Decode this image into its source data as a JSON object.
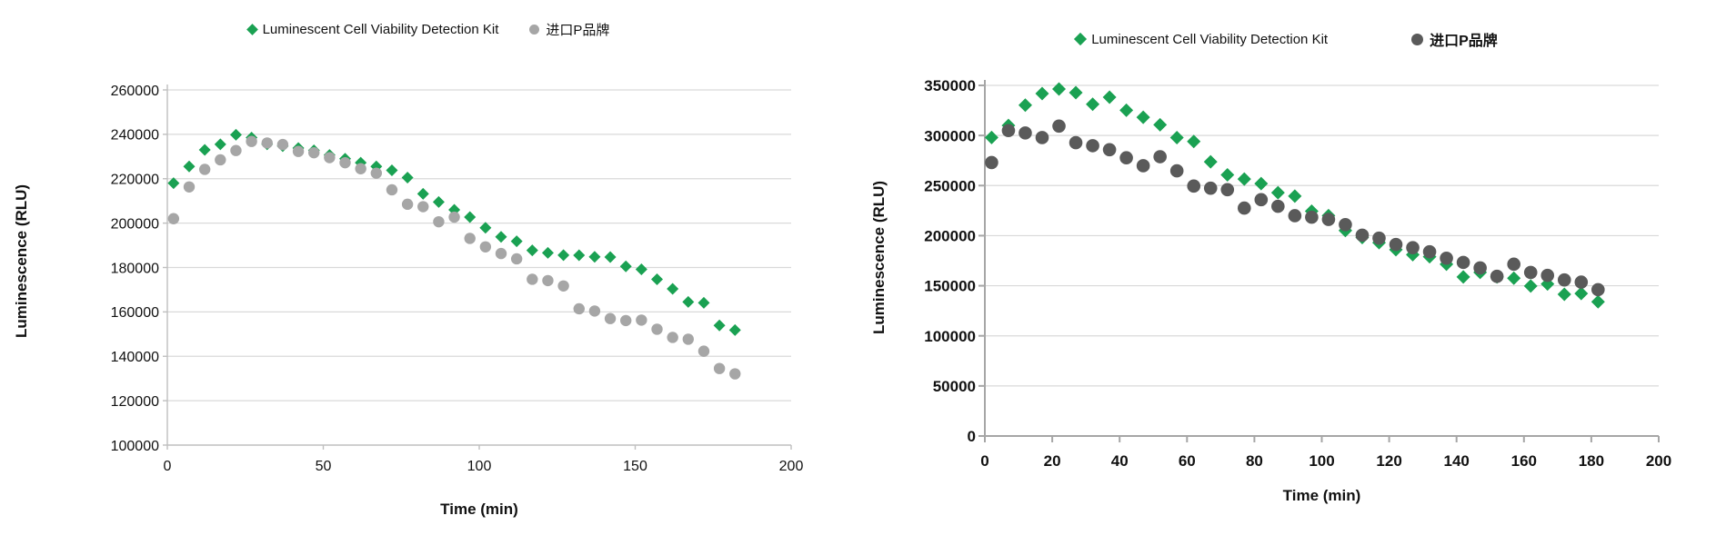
{
  "chart_data": [
    {
      "type": "scatter",
      "title": "",
      "xlabel": "Time (min)",
      "ylabel": "Luminescence (RLU)",
      "xlim": [
        0,
        200
      ],
      "xstep": 50,
      "ylim": [
        100000,
        260000
      ],
      "ystep": 20000,
      "grid": "horizontal",
      "legend_position": "top-center",
      "axis_color": "#bfbfbf",
      "gridline_color": "#d9d9d9",
      "x": [
        2,
        7,
        12,
        17,
        22,
        27,
        32,
        37,
        42,
        47,
        52,
        57,
        62,
        67,
        72,
        77,
        82,
        87,
        92,
        97,
        102,
        107,
        112,
        117,
        122,
        127,
        132,
        137,
        142,
        147,
        152,
        157,
        162,
        167,
        172,
        177,
        182
      ],
      "series": [
        {
          "name": "Luminescent Cell Viability Detection Kit",
          "marker": "diamond",
          "color": "#1aa152",
          "values": [
            218000,
            225500,
            233000,
            235500,
            239800,
            238500,
            235500,
            234700,
            233800,
            232800,
            230700,
            229000,
            227200,
            225500,
            223800,
            220500,
            213200,
            209500,
            206000,
            202700,
            197900,
            193800,
            191800,
            187700,
            186600,
            185600,
            185500,
            184800,
            184700,
            180500,
            179200,
            174700,
            170400,
            164500,
            164100,
            153900,
            151800
          ]
        },
        {
          "name": "进口P品牌",
          "marker": "circle",
          "color": "#a6a6a6",
          "values": [
            202000,
            216300,
            224200,
            228500,
            232700,
            236800,
            236100,
            235400,
            232300,
            231700,
            229500,
            227200,
            224500,
            222500,
            215000,
            208500,
            207400,
            200600,
            202700,
            193100,
            189300,
            186300,
            183900,
            174700,
            174100,
            171700,
            161400,
            160400,
            157000,
            156100,
            156300,
            152200,
            148500,
            147700,
            142300,
            134500,
            132100
          ]
        }
      ]
    },
    {
      "type": "scatter",
      "title": "",
      "xlabel": "Time  (min)",
      "ylabel": "Luminescence  (RLU)",
      "xlim": [
        0,
        200
      ],
      "xstep": 20,
      "ylim": [
        0,
        350000
      ],
      "ystep": 50000,
      "grid": "horizontal",
      "legend_position": "top-center",
      "axis_color": "#a6a6a6",
      "gridline_color": "#d9d9d9",
      "x": [
        2,
        7,
        12,
        17,
        22,
        27,
        32,
        37,
        42,
        47,
        52,
        57,
        62,
        67,
        72,
        77,
        82,
        87,
        92,
        97,
        102,
        107,
        112,
        117,
        122,
        127,
        132,
        137,
        142,
        147,
        152,
        157,
        162,
        167,
        172,
        177,
        182
      ],
      "series": [
        {
          "name": "Luminescent Cell Viability Detection Kit",
          "marker": "diamond",
          "color": "#1aa152",
          "values": [
            298000,
            310000,
            330300,
            341800,
            346400,
            342700,
            331200,
            338200,
            325200,
            318200,
            310700,
            297900,
            294000,
            273700,
            260700,
            256500,
            252000,
            242900,
            239500,
            224400,
            220000,
            205100,
            198100,
            193000,
            186000,
            181000,
            179000,
            171500,
            158800,
            163300,
            158800,
            157500,
            149700,
            151800,
            141500,
            142200,
            134000
          ]
        },
        {
          "name": "进口P品牌",
          "marker": "circle",
          "color": "#5a5a5a",
          "values": [
            273000,
            304900,
            302500,
            297900,
            309400,
            292800,
            289800,
            285800,
            277700,
            269800,
            278800,
            264700,
            249500,
            247400,
            245900,
            227500,
            235900,
            229300,
            219900,
            218400,
            216200,
            211000,
            200500,
            197500,
            191200,
            188000,
            183900,
            177500,
            173300,
            167800,
            159400,
            171500,
            163300,
            160300,
            155800,
            153600,
            146100
          ]
        }
      ]
    }
  ]
}
